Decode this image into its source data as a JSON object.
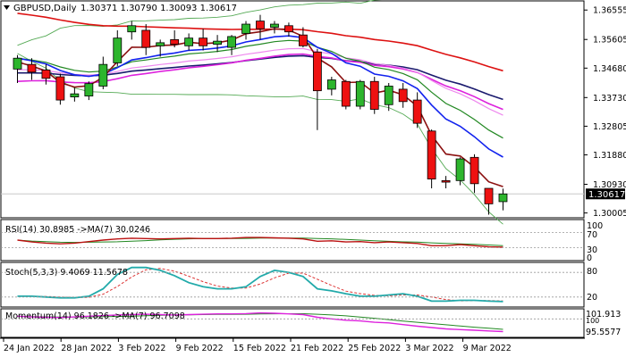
{
  "header": {
    "symbol": "GBPUSD,Daily",
    "ohlc": "1.30371 1.30790 1.30093 1.30617"
  },
  "price_panel": {
    "yticks": [
      "1.36555",
      "1.35605",
      "1.34680",
      "1.33730",
      "1.32805",
      "1.31880",
      "1.30930",
      "1.30005"
    ],
    "current_label": "1.30617",
    "colors": {
      "bull": "#2db52d",
      "bear": "#ee1111",
      "ma_red": "#dd1111",
      "ma_navy": "#1a1a6e",
      "ma_magenta": "#dd22dd",
      "ma_blue": "#1122ee",
      "ma_green": "#228822",
      "ma_maroon": "#8b1010",
      "band_green": "#55aa55",
      "ma_pink": "#ee88ee"
    }
  },
  "rsi_panel": {
    "label": "RSI(14) 30.8985  ->MA(7) 30.0246",
    "levels": [
      "100",
      "70",
      "30",
      "0"
    ]
  },
  "stoch_panel": {
    "label": "Stoch(5,3,3) 9.4069 11.5678",
    "levels": [
      "80",
      "20"
    ]
  },
  "momentum_panel": {
    "label": "Momentum(14) 96.1826  ->MA(7) 96.7098",
    "levels": [
      "101.913",
      "100",
      "95.5577"
    ]
  },
  "x_axis": {
    "labels": [
      "24 Jan 2022",
      "28 Jan 2022",
      "3 Feb 2022",
      "9 Feb 2022",
      "15 Feb 2022",
      "21 Feb 2022",
      "25 Feb 2022",
      "3 Mar 2022",
      "9 Mar 2022"
    ]
  },
  "chart_data": {
    "type": "candlestick",
    "ylim": [
      1.2985,
      1.3685
    ],
    "candles": [
      {
        "o": 1.3465,
        "h": 1.351,
        "l": 1.342,
        "c": 1.35
      },
      {
        "o": 1.348,
        "h": 1.35,
        "l": 1.343,
        "c": 1.3455
      },
      {
        "o": 1.3462,
        "h": 1.348,
        "l": 1.3415,
        "c": 1.3435
      },
      {
        "o": 1.344,
        "h": 1.345,
        "l": 1.335,
        "c": 1.3365
      },
      {
        "o": 1.3375,
        "h": 1.3405,
        "l": 1.336,
        "c": 1.3385
      },
      {
        "o": 1.3378,
        "h": 1.3425,
        "l": 1.3365,
        "c": 1.3418
      },
      {
        "o": 1.341,
        "h": 1.3505,
        "l": 1.34,
        "c": 1.348
      },
      {
        "o": 1.3485,
        "h": 1.359,
        "l": 1.3475,
        "c": 1.3565
      },
      {
        "o": 1.3585,
        "h": 1.362,
        "l": 1.356,
        "c": 1.3605
      },
      {
        "o": 1.359,
        "h": 1.361,
        "l": 1.351,
        "c": 1.3535
      },
      {
        "o": 1.354,
        "h": 1.356,
        "l": 1.3505,
        "c": 1.355
      },
      {
        "o": 1.356,
        "h": 1.359,
        "l": 1.3535,
        "c": 1.3545
      },
      {
        "o": 1.354,
        "h": 1.358,
        "l": 1.3525,
        "c": 1.3565
      },
      {
        "o": 1.3565,
        "h": 1.3595,
        "l": 1.3525,
        "c": 1.354
      },
      {
        "o": 1.3545,
        "h": 1.3575,
        "l": 1.352,
        "c": 1.3555
      },
      {
        "o": 1.3535,
        "h": 1.3575,
        "l": 1.351,
        "c": 1.357
      },
      {
        "o": 1.358,
        "h": 1.362,
        "l": 1.356,
        "c": 1.361
      },
      {
        "o": 1.362,
        "h": 1.364,
        "l": 1.356,
        "c": 1.3595
      },
      {
        "o": 1.36,
        "h": 1.362,
        "l": 1.358,
        "c": 1.361
      },
      {
        "o": 1.3605,
        "h": 1.3615,
        "l": 1.357,
        "c": 1.3585
      },
      {
        "o": 1.3575,
        "h": 1.36,
        "l": 1.3535,
        "c": 1.354
      },
      {
        "o": 1.352,
        "h": 1.353,
        "l": 1.3268,
        "c": 1.3395
      },
      {
        "o": 1.34,
        "h": 1.344,
        "l": 1.338,
        "c": 1.343
      },
      {
        "o": 1.3425,
        "h": 1.343,
        "l": 1.3335,
        "c": 1.3345
      },
      {
        "o": 1.3345,
        "h": 1.343,
        "l": 1.3335,
        "c": 1.3425
      },
      {
        "o": 1.3425,
        "h": 1.344,
        "l": 1.332,
        "c": 1.3335
      },
      {
        "o": 1.335,
        "h": 1.342,
        "l": 1.333,
        "c": 1.341
      },
      {
        "o": 1.34,
        "h": 1.342,
        "l": 1.334,
        "c": 1.336
      },
      {
        "o": 1.3365,
        "h": 1.339,
        "l": 1.3275,
        "c": 1.329
      },
      {
        "o": 1.3265,
        "h": 1.327,
        "l": 1.308,
        "c": 1.311
      },
      {
        "o": 1.3105,
        "h": 1.312,
        "l": 1.308,
        "c": 1.31
      },
      {
        "o": 1.3105,
        "h": 1.318,
        "l": 1.309,
        "c": 1.3175
      },
      {
        "o": 1.318,
        "h": 1.319,
        "l": 1.3065,
        "c": 1.3095
      },
      {
        "o": 1.308,
        "h": 1.308,
        "l": 1.2995,
        "c": 1.303
      },
      {
        "o": 1.3037,
        "h": 1.3079,
        "l": 1.3009,
        "c": 1.3062
      }
    ]
  }
}
